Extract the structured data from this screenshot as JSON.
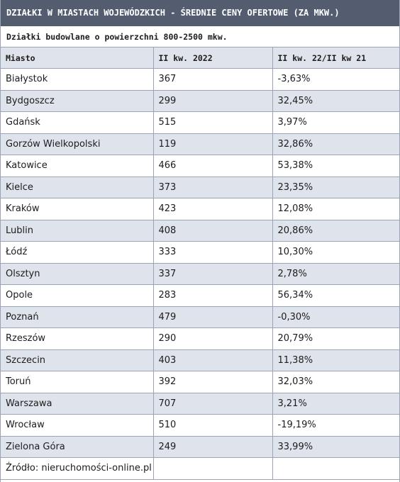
{
  "title": "DZIAŁKI W MIASTACH WOJEWÓDZKICH - ŚREDNIE CENY OFERTOWE (ZA MKW.)",
  "subtitle": "Działki budowlane o powierzchni 800-2500 mkw.",
  "headers": [
    "Miasto",
    "II kw. 2022",
    "II kw. 22/II kw 21"
  ],
  "rows": [
    {
      "city": "Białystok",
      "price": "367",
      "change": "-3,63%"
    },
    {
      "city": "Bydgoszcz",
      "price": "299",
      "change": "32,45%"
    },
    {
      "city": "Gdańsk",
      "price": "515",
      "change": "3,97%"
    },
    {
      "city": "Gorzów Wielkopolski",
      "price": "119",
      "change": "32,86%"
    },
    {
      "city": "Katowice",
      "price": "466",
      "change": "53,38%"
    },
    {
      "city": "Kielce",
      "price": "373",
      "change": "23,35%"
    },
    {
      "city": "Kraków",
      "price": "423",
      "change": "12,08%"
    },
    {
      "city": "Lublin",
      "price": "408",
      "change": "20,86%"
    },
    {
      "city": "Łódź",
      "price": "333",
      "change": "10,30%"
    },
    {
      "city": "Olsztyn",
      "price": "337",
      "change": "2,78%"
    },
    {
      "city": "Opole",
      "price": "283",
      "change": "56,34%"
    },
    {
      "city": "Poznań",
      "price": "479",
      "change": "-0,30%"
    },
    {
      "city": "Rzeszów",
      "price": "290",
      "change": "20,79%"
    },
    {
      "city": "Szczecin",
      "price": "403",
      "change": "11,38%"
    },
    {
      "city": "Toruń",
      "price": "392",
      "change": "32,03%"
    },
    {
      "city": "Warszawa",
      "price": "707",
      "change": "3,21%"
    },
    {
      "city": "Wrocław",
      "price": "510",
      "change": "-19,19%"
    },
    {
      "city": "Zielona Góra",
      "price": "249",
      "change": "33,99%"
    }
  ],
  "source": "Źródło: nieruchomości-online.pl"
}
